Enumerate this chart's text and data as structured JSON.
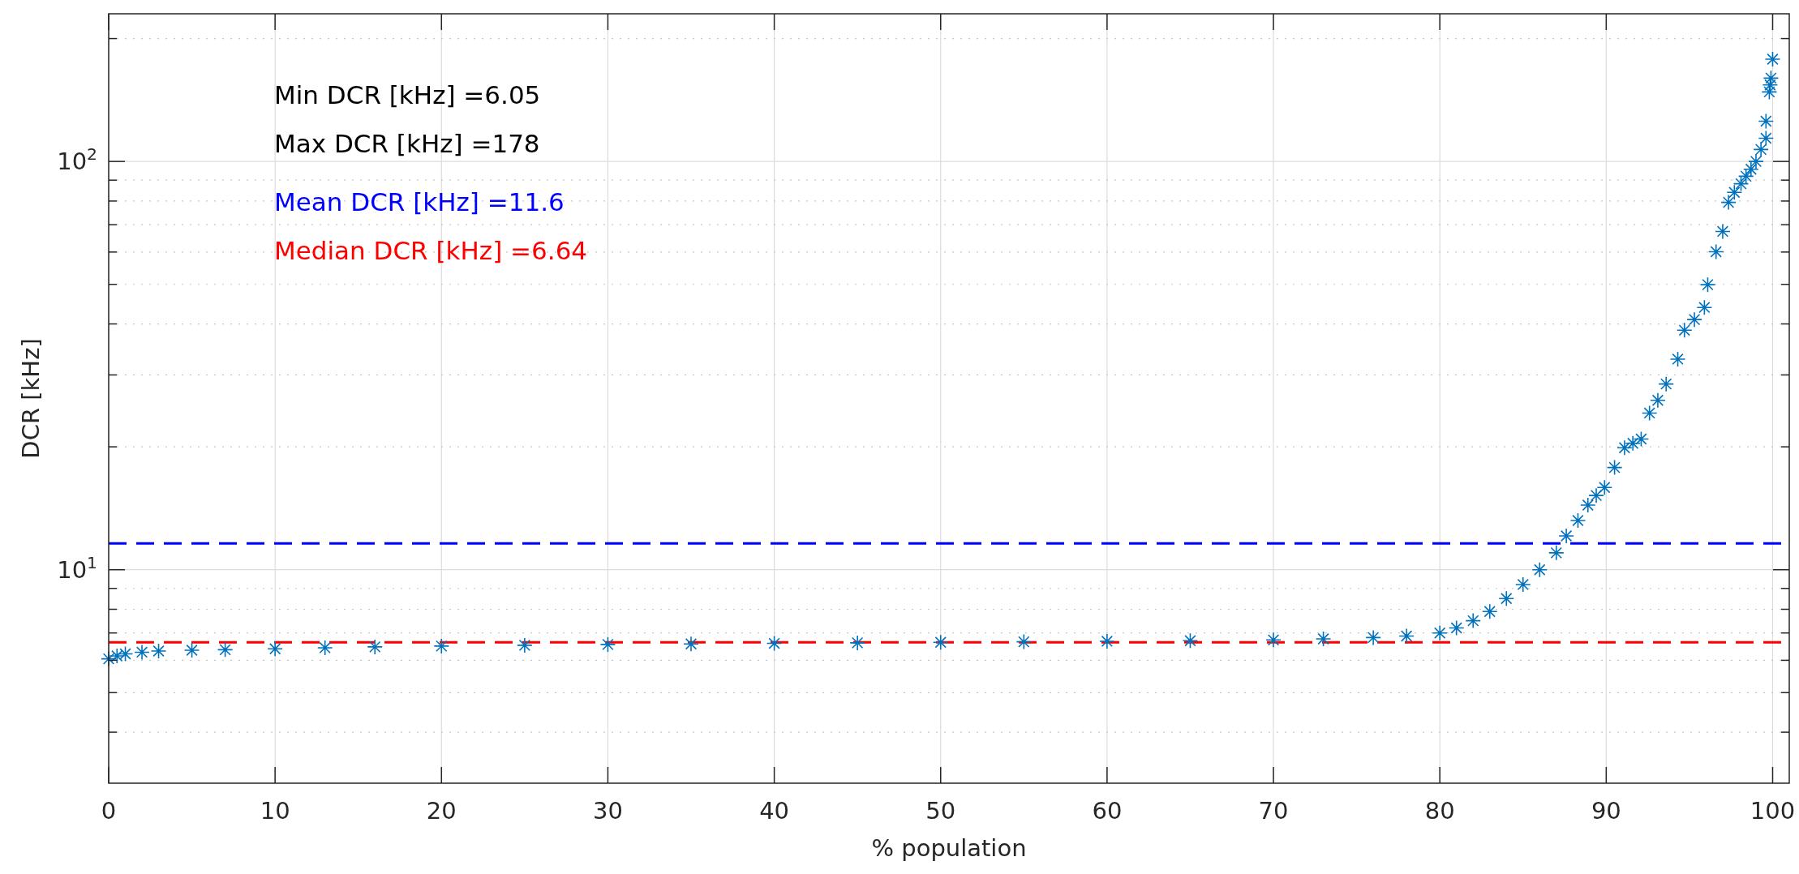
{
  "chart_data": {
    "type": "scatter",
    "xlabel": "% population",
    "ylabel": "DCR [kHz]",
    "x": [
      0,
      0.5,
      1,
      2,
      3,
      5,
      7,
      10,
      13,
      16,
      20,
      25,
      30,
      35,
      40,
      45,
      50,
      55,
      60,
      65,
      70,
      73,
      76,
      78,
      80,
      81,
      82,
      83,
      84,
      85,
      86,
      87,
      87.6,
      88.3,
      88.9,
      89.4,
      89.9,
      90.5,
      91.1,
      91.6,
      92.1,
      92.6,
      93.1,
      93.6,
      94.3,
      94.7,
      95.3,
      95.9,
      96.1,
      96.6,
      97.0,
      97.35,
      97.7,
      98.1,
      98.4,
      98.7,
      99.0,
      99.3,
      99.6,
      99.6,
      99.8,
      99.85,
      99.9,
      100
    ],
    "series": [
      {
        "color": "#0072bd",
        "values": [
          6.05,
          6.15,
          6.22,
          6.28,
          6.32,
          6.35,
          6.37,
          6.4,
          6.44,
          6.47,
          6.5,
          6.53,
          6.56,
          6.58,
          6.6,
          6.62,
          6.64,
          6.66,
          6.68,
          6.7,
          6.73,
          6.77,
          6.82,
          6.88,
          7.0,
          7.2,
          7.5,
          7.9,
          8.5,
          9.2,
          10.0,
          11.0,
          12.1,
          13.2,
          14.4,
          15.2,
          15.9,
          17.8,
          19.9,
          20.4,
          20.9,
          24.2,
          26.0,
          28.5,
          32.8,
          38.6,
          41.0,
          43.9,
          49.9,
          60.1,
          67.4,
          79.4,
          84,
          88.2,
          92,
          95.7,
          100,
          107,
          114,
          125.5,
          148,
          154,
          160,
          178
        ]
      }
    ],
    "marker": "cross",
    "log": "y",
    "grid": true,
    "xlim": [
      0,
      101
    ],
    "xticks": [
      0,
      10,
      20,
      30,
      40,
      50,
      60,
      70,
      80,
      90,
      100
    ],
    "ylim": [
      3,
      230
    ],
    "yticks": [
      {
        "value": 4,
        "label": null
      },
      {
        "value": 5,
        "label": null
      },
      {
        "value": 6,
        "label": null
      },
      {
        "value": 7,
        "label": null
      },
      {
        "value": 8,
        "label": null
      },
      {
        "value": 9,
        "label": null
      },
      {
        "value": 10,
        "label": "10$^{1}$"
      },
      {
        "value": 20,
        "label": null
      },
      {
        "value": 30,
        "label": null
      },
      {
        "value": 40,
        "label": null
      },
      {
        "value": 50,
        "label": null
      },
      {
        "value": 60,
        "label": null
      },
      {
        "value": 70,
        "label": null
      },
      {
        "value": 80,
        "label": null
      },
      {
        "value": 90,
        "label": null
      },
      {
        "value": 100,
        "label": "10$^{2}$"
      },
      {
        "value": 200,
        "label": null
      }
    ],
    "annotations": [
      "Min DCR [kHz] =6.05",
      "Max DCR [kHz] =178"
    ],
    "ref_lines": [
      {
        "axis": "y",
        "value": 11.6,
        "label": "Mean DCR [kHz] =11.6",
        "color": "#0000ff",
        "line_style": "dashed"
      },
      {
        "axis": "y",
        "value": 6.64,
        "label": "Median DCR [kHz] =6.64",
        "color": "#ff0000",
        "line_style": "dashed"
      }
    ]
  }
}
